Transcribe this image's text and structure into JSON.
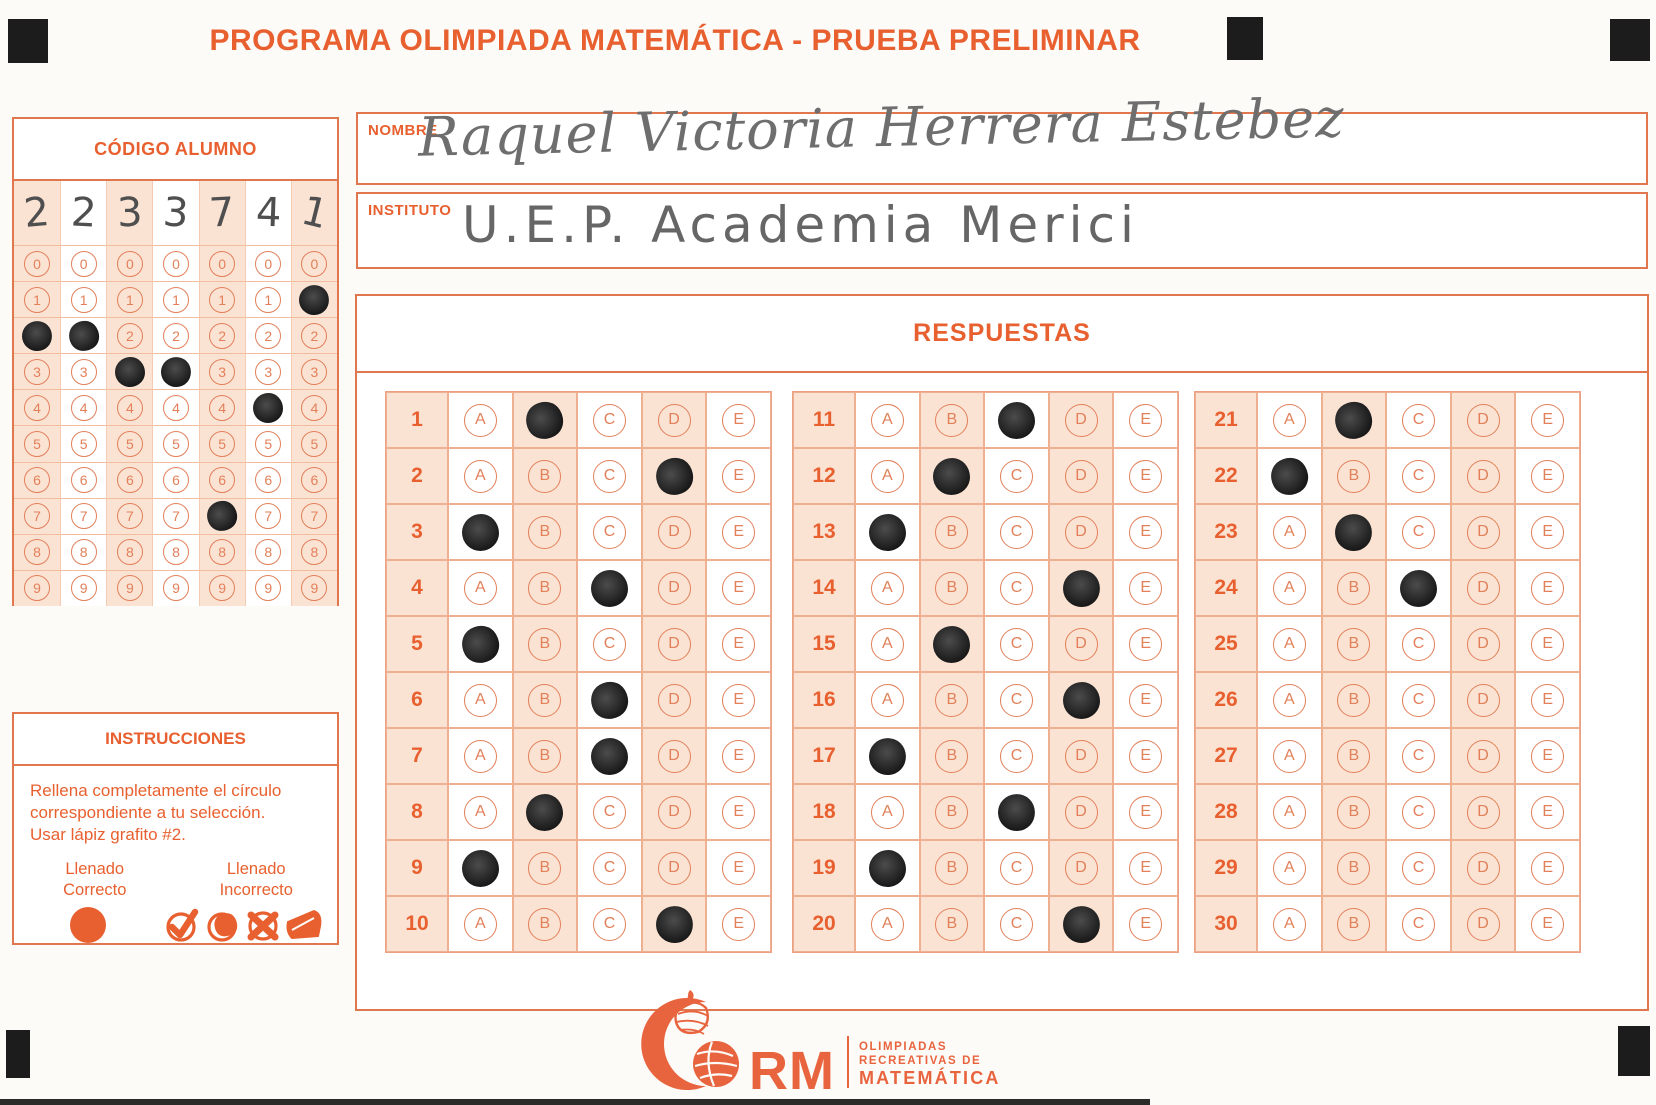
{
  "title": "PROGRAMA OLIMPIADA MATEMÁTICA  - PRUEBA PRELIMINAR",
  "student_code": {
    "header": "CÓDIGO ALUMNO",
    "digits": [
      "2",
      "2",
      "3",
      "3",
      "7",
      "4",
      "1"
    ],
    "bubble_rows": [
      "0",
      "1",
      "2",
      "3",
      "4",
      "5",
      "6",
      "7",
      "8",
      "9"
    ],
    "filled_row_per_column": [
      2,
      2,
      3,
      3,
      7,
      4,
      1
    ]
  },
  "fields": {
    "name_label": "NOMBRE",
    "name_value": "Raquel Victoria Herrera Estebez",
    "institute_label": "INSTITUTO",
    "institute_value": "U.E.P. Academia Merici"
  },
  "answers": {
    "header": "RESPUESTAS",
    "options": [
      "A",
      "B",
      "C",
      "D",
      "E"
    ],
    "blocks": [
      {
        "start": 1,
        "marked": [
          "B",
          "D",
          "A",
          "C",
          "A",
          "C",
          "C",
          "B",
          "A",
          "D"
        ]
      },
      {
        "start": 11,
        "marked": [
          "C",
          "B",
          "A",
          "D",
          "B",
          "D",
          "A",
          "C",
          "A",
          "D"
        ]
      },
      {
        "start": 21,
        "marked": [
          "B",
          "A",
          "B",
          "C",
          null,
          null,
          null,
          null,
          null,
          null
        ]
      }
    ]
  },
  "instructions": {
    "header": "INSTRUCCIONES",
    "line1": "Rellena completamente el círculo",
    "line2": "correspondiente a tu selección.",
    "line3": "Usar lápiz grafito #2.",
    "correct_label_line1": "Llenado",
    "correct_label_line2": "Correcto",
    "incorrect_label_line1": "Llenado",
    "incorrect_label_line2": "Incorrecto"
  },
  "logo": {
    "acronym": "RM",
    "subtitle_line1": "OLIMPIADAS",
    "subtitle_line2": "RECREATIVAS DE",
    "subtitle_line3": "MATEMÁTICA"
  },
  "colors": {
    "accent": "#E8602F",
    "accent_light": "#E2805A",
    "cell_shade": "#FBE3D4",
    "pencil": "#2E2E2E",
    "handwriting": "#6E6E6E",
    "registration_mark": "#1C1C1C"
  }
}
